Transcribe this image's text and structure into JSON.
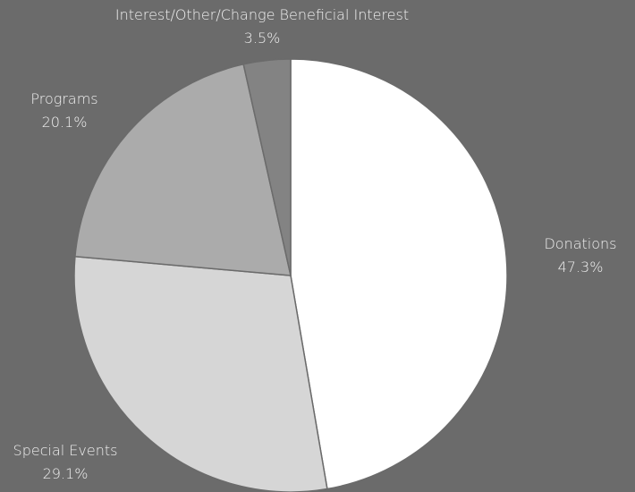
{
  "chart_data": {
    "type": "pie",
    "title": "",
    "slices": [
      {
        "label": "Donations",
        "value": 47.3,
        "value_label": "47.3%",
        "color": "#ffffff"
      },
      {
        "label": "Special Events",
        "value": 29.1,
        "value_label": "29.1%",
        "color": "#d6d6d6"
      },
      {
        "label": "Programs",
        "value": 20.1,
        "value_label": "20.1%",
        "color": "#ababab"
      },
      {
        "label": "Interest/Other/Change Beneficial Interest",
        "value": 3.5,
        "value_label": "3.5%",
        "color": "#838383"
      }
    ],
    "start_angle": "12 o'clock",
    "direction": "clockwise",
    "legend": "none",
    "background": "#6b6b6b"
  }
}
